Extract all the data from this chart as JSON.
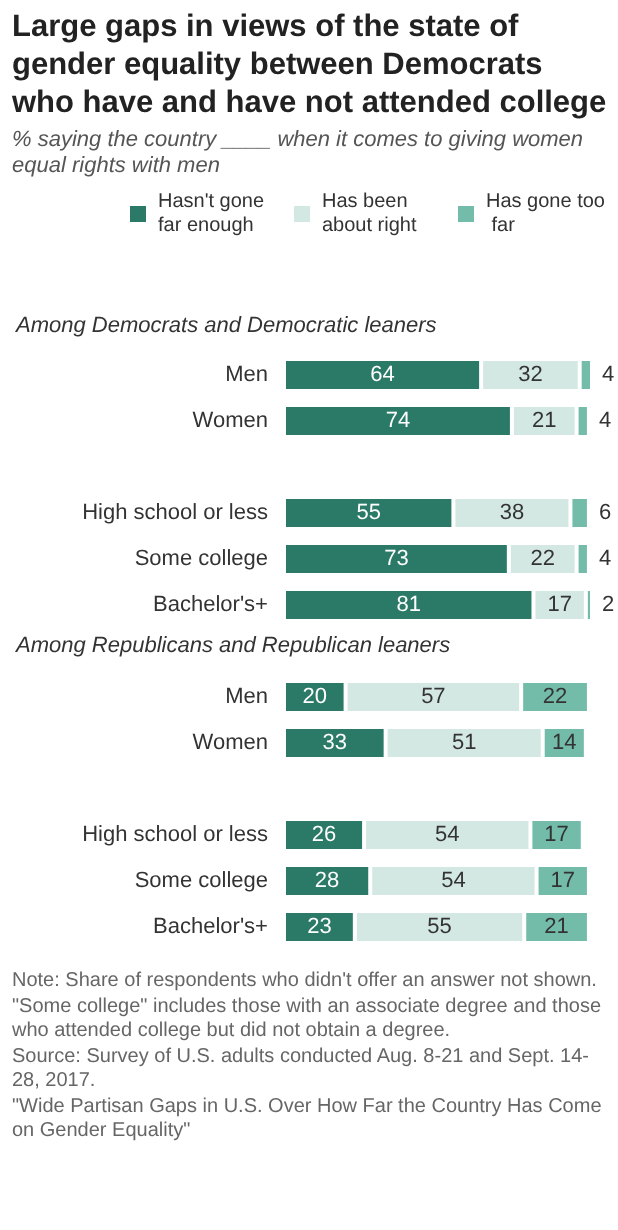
{
  "chart_data": {
    "type": "bar",
    "title": "Large gaps in views of the state of gender equality between Democrats who have and have not attended college",
    "subtitle": "% saying the country ____ when it comes to giving women equal rights with men",
    "orientation": "horizontal",
    "stacked": true,
    "data_labels": true,
    "legend": "top",
    "tick_labels": "y",
    "grid": false,
    "xlim": [
      0,
      100
    ],
    "annotations": [
      "Among Democrats and Democratic leaners",
      "Among Republicans and Republican leaners",
      "Note: Share of respondents who didn't offer an answer not shown. \"Some college\" includes those with an associate degree and those who attended college but did not obtain a degree.",
      "Source: Survey of U.S. adults conducted Aug. 8-21 and Sept. 14-28, 2017.",
      "\"Wide Partisan Gaps in U.S. Over How Far the Country Has Come on Gender Equality\""
    ],
    "categories": [
      "Men",
      "Women",
      null,
      "High school or less",
      "Some college",
      "Bachelor's+",
      null,
      "Men",
      "Women",
      null,
      "High school or less",
      "Some college",
      "Bachelor's+"
    ],
    "series": [
      {
        "name": "Hasn't gone far enough",
        "color": "#2b7a68",
        "values": [
          64,
          74,
          null,
          55,
          73,
          81,
          null,
          20,
          33,
          null,
          26,
          28,
          23
        ]
      },
      {
        "name": "Has been about right",
        "color": "#d3e8e3",
        "values": [
          32,
          21,
          null,
          38,
          22,
          17,
          null,
          57,
          51,
          null,
          54,
          54,
          55
        ]
      },
      {
        "name": "Has gone too far",
        "color": "#72bca9",
        "values": [
          4,
          4,
          null,
          6,
          4,
          2,
          null,
          22,
          14,
          null,
          17,
          17,
          21
        ]
      }
    ]
  }
}
